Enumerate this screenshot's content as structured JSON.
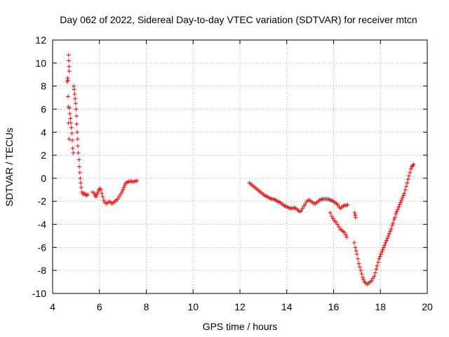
{
  "chart_data": {
    "type": "scatter",
    "title": "Day 062 of 2022, Sidereal Day-to-day VTEC variation (SDTVAR) for receiver mtcn",
    "xlabel": "GPS time / hours",
    "ylabel": "SDTVAR / TECUs",
    "xlim": [
      4,
      20
    ],
    "ylim": [
      -10,
      12
    ],
    "xticks": [
      4,
      6,
      8,
      10,
      12,
      14,
      16,
      18,
      20
    ],
    "yticks": [
      -10,
      -8,
      -6,
      -4,
      -2,
      0,
      2,
      4,
      6,
      8,
      10,
      12
    ],
    "grid": true,
    "marker": "+",
    "colors": {
      "series": "#ff0000",
      "grid": "#a0a0a0",
      "axes": "#000000"
    },
    "series": [
      {
        "name": "SDTVAR",
        "points": [
          [
            4.62,
            8.4
          ],
          [
            4.64,
            8.7
          ],
          [
            4.66,
            8.5
          ],
          [
            4.68,
            10.7
          ],
          [
            4.69,
            10.2
          ],
          [
            4.7,
            9.7
          ],
          [
            4.71,
            9.3
          ],
          [
            4.66,
            7.1
          ],
          [
            4.67,
            6.2
          ],
          [
            4.68,
            4.8
          ],
          [
            4.7,
            3.4
          ],
          [
            4.72,
            6.1
          ],
          [
            4.74,
            5.6
          ],
          [
            4.76,
            5.2
          ],
          [
            4.78,
            4.8
          ],
          [
            4.8,
            4.4
          ],
          [
            4.82,
            3.9
          ],
          [
            4.84,
            3.3
          ],
          [
            4.86,
            2.6
          ],
          [
            4.88,
            2.2
          ],
          [
            4.9,
            8.0
          ],
          [
            4.92,
            7.7
          ],
          [
            4.94,
            7.3
          ],
          [
            4.96,
            6.9
          ],
          [
            4.98,
            6.5
          ],
          [
            5.0,
            6.0
          ],
          [
            5.02,
            5.4
          ],
          [
            5.03,
            4.7
          ],
          [
            5.05,
            4.0
          ],
          [
            5.07,
            3.4
          ],
          [
            5.08,
            2.8
          ],
          [
            5.1,
            2.2
          ],
          [
            5.12,
            1.6
          ],
          [
            5.14,
            1.0
          ],
          [
            5.16,
            0.5
          ],
          [
            5.18,
            0.0
          ],
          [
            5.2,
            -0.4
          ],
          [
            5.22,
            -0.8
          ],
          [
            5.25,
            -1.2
          ],
          [
            5.3,
            -1.4
          ],
          [
            5.35,
            -1.3
          ],
          [
            5.4,
            -1.4
          ],
          [
            5.45,
            -1.5
          ],
          [
            5.5,
            -1.4
          ],
          [
            5.7,
            -1.2
          ],
          [
            5.78,
            -1.3
          ],
          [
            5.82,
            -1.5
          ],
          [
            5.86,
            -1.6
          ],
          [
            5.9,
            -1.4
          ],
          [
            5.94,
            -1.2
          ],
          [
            5.98,
            -1.0
          ],
          [
            6.02,
            -0.9
          ],
          [
            6.06,
            -1.0
          ],
          [
            6.1,
            -1.3
          ],
          [
            6.14,
            -1.6
          ],
          [
            6.18,
            -1.9
          ],
          [
            6.24,
            -2.1
          ],
          [
            6.3,
            -2.2
          ],
          [
            6.36,
            -2.1
          ],
          [
            6.42,
            -2.0
          ],
          [
            6.48,
            -2.1
          ],
          [
            6.54,
            -2.2
          ],
          [
            6.6,
            -2.1
          ],
          [
            6.66,
            -2.0
          ],
          [
            6.72,
            -1.9
          ],
          [
            6.78,
            -1.8
          ],
          [
            6.84,
            -1.6
          ],
          [
            6.9,
            -1.4
          ],
          [
            6.96,
            -1.2
          ],
          [
            7.0,
            -1.0
          ],
          [
            7.04,
            -0.8
          ],
          [
            7.08,
            -0.6
          ],
          [
            7.12,
            -0.45
          ],
          [
            7.18,
            -0.35
          ],
          [
            7.24,
            -0.3
          ],
          [
            7.3,
            -0.25
          ],
          [
            7.36,
            -0.25
          ],
          [
            7.42,
            -0.3
          ],
          [
            7.48,
            -0.28
          ],
          [
            7.54,
            -0.25
          ],
          [
            7.6,
            -0.2
          ],
          [
            12.4,
            -0.4
          ],
          [
            12.46,
            -0.5
          ],
          [
            12.52,
            -0.6
          ],
          [
            12.58,
            -0.7
          ],
          [
            12.64,
            -0.8
          ],
          [
            12.7,
            -0.9
          ],
          [
            12.76,
            -1.0
          ],
          [
            12.82,
            -1.1
          ],
          [
            12.88,
            -1.2
          ],
          [
            12.94,
            -1.3
          ],
          [
            13.0,
            -1.4
          ],
          [
            13.06,
            -1.5
          ],
          [
            13.12,
            -1.55
          ],
          [
            13.18,
            -1.6
          ],
          [
            13.24,
            -1.7
          ],
          [
            13.3,
            -1.75
          ],
          [
            13.36,
            -1.8
          ],
          [
            13.42,
            -1.8
          ],
          [
            13.48,
            -1.85
          ],
          [
            13.54,
            -1.9
          ],
          [
            13.6,
            -2.0
          ],
          [
            13.66,
            -2.05
          ],
          [
            13.72,
            -2.1
          ],
          [
            13.78,
            -2.2
          ],
          [
            13.84,
            -2.3
          ],
          [
            13.9,
            -2.4
          ],
          [
            13.96,
            -2.45
          ],
          [
            14.02,
            -2.5
          ],
          [
            14.08,
            -2.55
          ],
          [
            14.14,
            -2.6
          ],
          [
            14.2,
            -2.6
          ],
          [
            14.26,
            -2.6
          ],
          [
            14.32,
            -2.55
          ],
          [
            14.38,
            -2.6
          ],
          [
            14.44,
            -2.7
          ],
          [
            14.5,
            -2.8
          ],
          [
            14.56,
            -2.9
          ],
          [
            14.62,
            -2.8
          ],
          [
            14.68,
            -2.6
          ],
          [
            14.74,
            -2.4
          ],
          [
            14.8,
            -2.2
          ],
          [
            14.86,
            -2.0
          ],
          [
            14.92,
            -1.9
          ],
          [
            14.98,
            -1.9
          ],
          [
            15.04,
            -2.0
          ],
          [
            15.1,
            -2.1
          ],
          [
            15.16,
            -2.2
          ],
          [
            15.22,
            -2.2
          ],
          [
            15.28,
            -2.1
          ],
          [
            15.34,
            -2.0
          ],
          [
            15.4,
            -1.9
          ],
          [
            15.46,
            -1.85
          ],
          [
            15.52,
            -1.8
          ],
          [
            15.58,
            -1.8
          ],
          [
            15.64,
            -1.8
          ],
          [
            15.7,
            -1.8
          ],
          [
            15.76,
            -1.8
          ],
          [
            15.82,
            -1.85
          ],
          [
            15.88,
            -1.9
          ],
          [
            15.94,
            -1.95
          ],
          [
            16.0,
            -2.0
          ],
          [
            16.06,
            -2.1
          ],
          [
            16.12,
            -2.2
          ],
          [
            16.18,
            -2.3
          ],
          [
            16.24,
            -2.5
          ],
          [
            16.3,
            -2.6
          ],
          [
            16.36,
            -2.5
          ],
          [
            16.42,
            -2.4
          ],
          [
            16.48,
            -2.35
          ],
          [
            16.54,
            -2.35
          ],
          [
            16.6,
            -2.3
          ],
          [
            15.86,
            -3.0
          ],
          [
            15.92,
            -3.3
          ],
          [
            15.98,
            -3.5
          ],
          [
            16.04,
            -3.7
          ],
          [
            16.1,
            -3.8
          ],
          [
            16.16,
            -4.0
          ],
          [
            16.22,
            -4.2
          ],
          [
            16.28,
            -4.4
          ],
          [
            16.34,
            -4.5
          ],
          [
            16.4,
            -4.6
          ],
          [
            16.46,
            -4.7
          ],
          [
            16.52,
            -4.9
          ],
          [
            16.56,
            -5.1
          ],
          [
            16.9,
            -3.0
          ],
          [
            16.92,
            -3.2
          ],
          [
            16.94,
            -3.4
          ],
          [
            16.88,
            -5.6
          ],
          [
            16.92,
            -6.0
          ],
          [
            16.96,
            -6.3
          ],
          [
            17.0,
            -6.6
          ],
          [
            17.04,
            -7.0
          ],
          [
            17.08,
            -7.4
          ],
          [
            17.12,
            -7.7
          ],
          [
            17.16,
            -8.0
          ],
          [
            17.2,
            -8.3
          ],
          [
            17.24,
            -8.6
          ],
          [
            17.28,
            -8.8
          ],
          [
            17.32,
            -9.0
          ],
          [
            17.38,
            -9.1
          ],
          [
            17.44,
            -9.2
          ],
          [
            17.5,
            -9.1
          ],
          [
            17.56,
            -9.0
          ],
          [
            17.62,
            -8.9
          ],
          [
            17.68,
            -8.7
          ],
          [
            17.74,
            -8.5
          ],
          [
            17.78,
            -8.2
          ],
          [
            17.82,
            -7.9
          ],
          [
            17.86,
            -7.6
          ],
          [
            17.9,
            -7.3
          ],
          [
            17.94,
            -7.0
          ],
          [
            17.98,
            -6.8
          ],
          [
            18.02,
            -6.6
          ],
          [
            18.06,
            -6.4
          ],
          [
            18.1,
            -6.2
          ],
          [
            18.14,
            -6.0
          ],
          [
            18.18,
            -5.8
          ],
          [
            18.22,
            -5.6
          ],
          [
            18.26,
            -5.4
          ],
          [
            18.3,
            -5.2
          ],
          [
            18.34,
            -5.0
          ],
          [
            18.38,
            -4.8
          ],
          [
            18.42,
            -4.6
          ],
          [
            18.46,
            -4.4
          ],
          [
            18.5,
            -4.1
          ],
          [
            18.54,
            -3.9
          ],
          [
            18.58,
            -3.6
          ],
          [
            18.62,
            -3.4
          ],
          [
            18.66,
            -3.1
          ],
          [
            18.7,
            -2.9
          ],
          [
            18.74,
            -2.7
          ],
          [
            18.78,
            -2.5
          ],
          [
            18.82,
            -2.3
          ],
          [
            18.86,
            -2.1
          ],
          [
            18.9,
            -1.9
          ],
          [
            18.94,
            -1.7
          ],
          [
            18.98,
            -1.5
          ],
          [
            19.02,
            -1.3
          ],
          [
            19.06,
            -1.0
          ],
          [
            19.1,
            -0.7
          ],
          [
            19.14,
            -0.4
          ],
          [
            19.18,
            -0.1
          ],
          [
            19.22,
            0.2
          ],
          [
            19.26,
            0.5
          ],
          [
            19.3,
            0.8
          ],
          [
            19.34,
            1.0
          ],
          [
            19.38,
            1.1
          ],
          [
            19.42,
            1.2
          ]
        ]
      }
    ]
  }
}
